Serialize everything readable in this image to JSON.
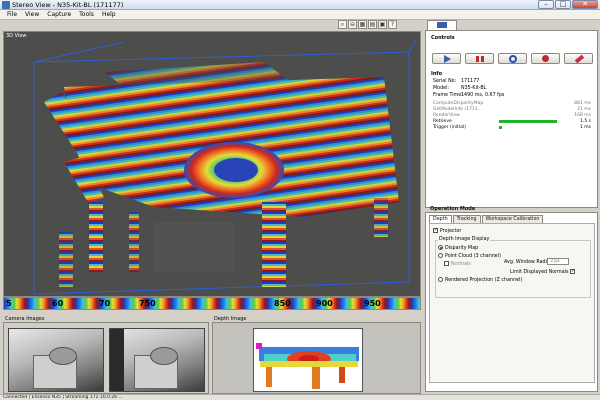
{
  "window": {
    "title": "Stereo View - N35-Kit-BL (171177)",
    "min": "–",
    "max": "□",
    "close": "✕"
  },
  "menu": [
    "File",
    "View",
    "Capture",
    "Tools",
    "Help"
  ],
  "toolbar": {
    "icons": [
      "zoom-icon",
      "zoom-out-icon",
      "grid-icon",
      "chart-icon",
      "palette-icon",
      "help-icon"
    ],
    "glyphs": [
      "⌕",
      "⊖",
      "▦",
      "▤",
      "▣",
      "?"
    ]
  },
  "view3d": {
    "label": "3D View"
  },
  "scale": {
    "ticks": [
      "5",
      "60",
      "70",
      "750",
      "850",
      "900",
      "950"
    ]
  },
  "camera": {
    "label": "Camera Images"
  },
  "depth": {
    "label": "Depth Image"
  },
  "status": {
    "text": "Connected | Ensenso N35 | Streaming 172.16.0.26 ..."
  },
  "right": {
    "tab_label": "",
    "controls": {
      "label": "Controls",
      "buttons": [
        {
          "name": "play-button",
          "icon": "play-icon",
          "color": "#3a5fae"
        },
        {
          "name": "pause-button",
          "icon": "pause-icon",
          "color": "#c62828"
        },
        {
          "name": "refresh-button",
          "icon": "refresh-icon",
          "color": "#1f4fb4"
        },
        {
          "name": "record-button",
          "icon": "record-icon",
          "color": "#c62828"
        },
        {
          "name": "erase-button",
          "icon": "eraser-icon",
          "color": "#c6314a"
        }
      ]
    },
    "info": {
      "label": "Info",
      "rows": [
        {
          "key": "Serial No:",
          "value": "171177"
        },
        {
          "key": "Model:",
          "value": "N35-Kit-BL"
        },
        {
          "key": "Frame Time:",
          "value": "1490 ms, 0.67 fps"
        }
      ],
      "perf": [
        {
          "key": "ComputeDisparityMap",
          "value": "881 ms",
          "bar": 0,
          "strong": false
        },
        {
          "key": "GetModelInfo (1711..",
          "value": "21 ms",
          "bar": 0,
          "strong": false
        },
        {
          "key": "RenderView",
          "value": "168 ms",
          "bar": 0,
          "strong": false
        },
        {
          "key": "Retrieve",
          "value": "1.5 s",
          "bar": 1.0,
          "strong": true
        },
        {
          "key": "Trigger (initial)",
          "value": "1 ms",
          "bar": 0.05,
          "strong": true
        }
      ]
    },
    "operation": {
      "label": "Operation Mode",
      "tabs": [
        "Depth",
        "Tracking",
        "Workspace Calibration"
      ],
      "projector": "Projector",
      "group_title": "Depth Image Display",
      "options": {
        "disparity": "Disparity Map",
        "pointcloud": "Point Cloud (3 channel)",
        "normals": "Normals",
        "avg_radius_label": "Avg. Window Radius:",
        "avg_radius_value": "3 px",
        "limit_normals": "Limit Displayed Normals",
        "rendered": "Rendered Projection (Z channel)"
      }
    }
  }
}
